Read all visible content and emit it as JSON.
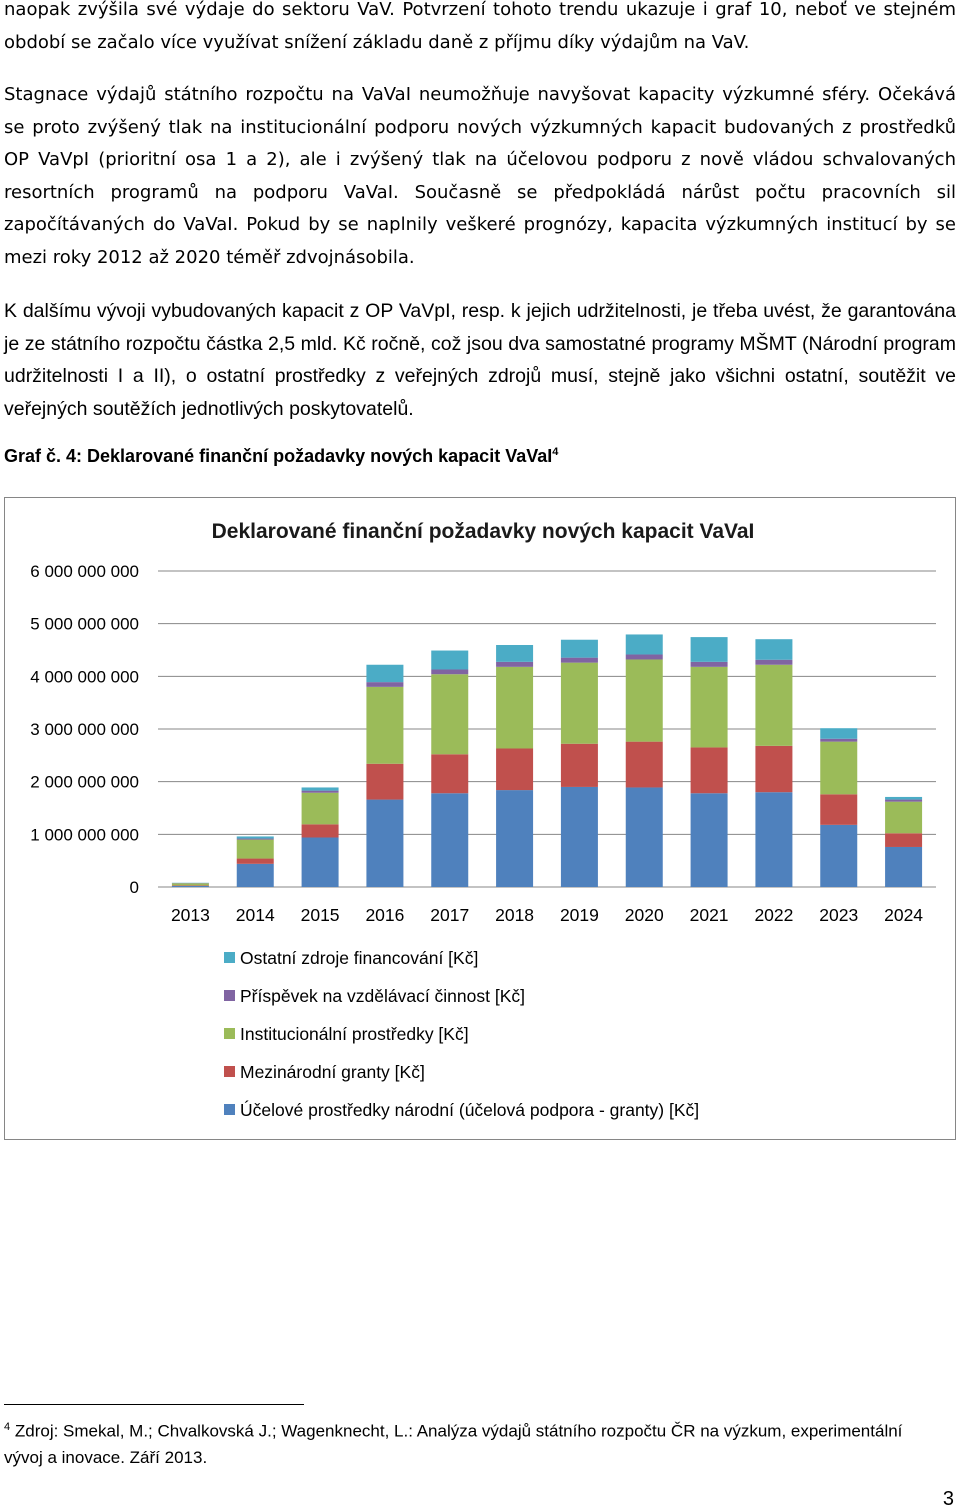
{
  "paragraphs": {
    "p1": "naopak zvýšila své výdaje do sektoru VaV. Potvrzení tohoto trendu ukazuje i graf 10, neboť ve stejném období se začalo více využívat snížení základu daně z příjmu díky výdajům na VaV.",
    "p2a": "Stagnace výdajů státního rozpočtu na VaVaI neumožňuje navyšovat kapacity výzkumné sféry.",
    "p2b": "Očekává se proto zvýšený tlak na institucionální podporu nových výzkumných kapacit budovaných z prostředků OP VaVpI (prioritní osa 1 a 2), ale i zvýšený tlak na účelovou podporu z nově vládou schvalovaných resortních programů na podporu VaVaI. Současně se předpokládá nárůst počtu pracovních sil započítávaných do VaVaI. Pokud by se naplnily veškeré prognózy, kapacita výzkumných institucí by se mezi roky 2012 až 2020 téměř zdvojnásobila.",
    "p3": "K dalšímu vývoji vybudovaných kapacit z OP VaVpI, resp. k jejich udržitelnosti, je třeba uvést, že garantována je ze státního rozpočtu částka 2,5 mld. Kč ročně, což jsou dva samostatné programy MŠMT (Národní program udržitelnosti I a II), o ostatní prostředky z veřejných zdrojů musí, stejně jako všichni ostatní, soutěžit ve veřejných soutěžích jednotlivých poskytovatelů."
  },
  "caption": {
    "text": "Graf č. 4: Deklarované finanční požadavky nových kapacit VaVaI",
    "note_ref": "4"
  },
  "chart_data": {
    "type": "bar",
    "stacked": true,
    "title": "Deklarované finanční požadavky nových kapacit VaVaI",
    "xlabel": "",
    "ylabel": "",
    "ylim": [
      0,
      6000000000
    ],
    "y_ticks": [
      {
        "value": 0,
        "label": "0"
      },
      {
        "value": 1000000000,
        "label": "1 000 000 000"
      },
      {
        "value": 2000000000,
        "label": "2 000 000 000"
      },
      {
        "value": 3000000000,
        "label": "3 000 000 000"
      },
      {
        "value": 4000000000,
        "label": "4 000 000 000"
      },
      {
        "value": 5000000000,
        "label": "5 000 000 000"
      },
      {
        "value": 6000000000,
        "label": "6 000 000 000"
      }
    ],
    "grid": true,
    "legend_position": "bottom",
    "categories": [
      "2013",
      "2014",
      "2015",
      "2016",
      "2017",
      "2018",
      "2019",
      "2020",
      "2021",
      "2022",
      "2023",
      "2024"
    ],
    "series": [
      {
        "name": "Účelové prostředky národní (účelová podpora - granty) [Kč]",
        "color": "#4F81BD",
        "values": [
          20000000,
          440000000,
          940000000,
          1660000000,
          1780000000,
          1840000000,
          1900000000,
          1890000000,
          1780000000,
          1800000000,
          1180000000,
          760000000
        ]
      },
      {
        "name": "Mezinárodní granty [Kč]",
        "color": "#C0504D",
        "values": [
          10000000,
          100000000,
          250000000,
          680000000,
          740000000,
          790000000,
          820000000,
          870000000,
          870000000,
          880000000,
          580000000,
          260000000
        ]
      },
      {
        "name": "Institucionální prostředky [Kč]",
        "color": "#9BBB59",
        "values": [
          40000000,
          360000000,
          600000000,
          1460000000,
          1520000000,
          1550000000,
          1540000000,
          1560000000,
          1530000000,
          1540000000,
          1000000000,
          600000000
        ]
      },
      {
        "name": "Příspěvek na vzdělávací činnost [Kč]",
        "color": "#8064A2",
        "values": [
          5000000,
          20000000,
          40000000,
          90000000,
          90000000,
          95000000,
          95000000,
          95000000,
          95000000,
          95000000,
          55000000,
          40000000
        ]
      },
      {
        "name": "Ostatní zdroje financování [Kč]",
        "color": "#4BACC6",
        "values": [
          5000000,
          40000000,
          60000000,
          330000000,
          360000000,
          320000000,
          340000000,
          380000000,
          470000000,
          390000000,
          200000000,
          50000000
        ]
      }
    ]
  },
  "legend_order": [
    4,
    3,
    2,
    1,
    0
  ],
  "footnote": {
    "num": "4",
    "text": "Zdroj: Smekal, M.; Chvalkovská J.; Wagenknecht, L.: Analýza výdajů státního rozpočtu ČR na výzkum, experimentální vývoj a inovace. Září 2013."
  },
  "page_number": "3"
}
